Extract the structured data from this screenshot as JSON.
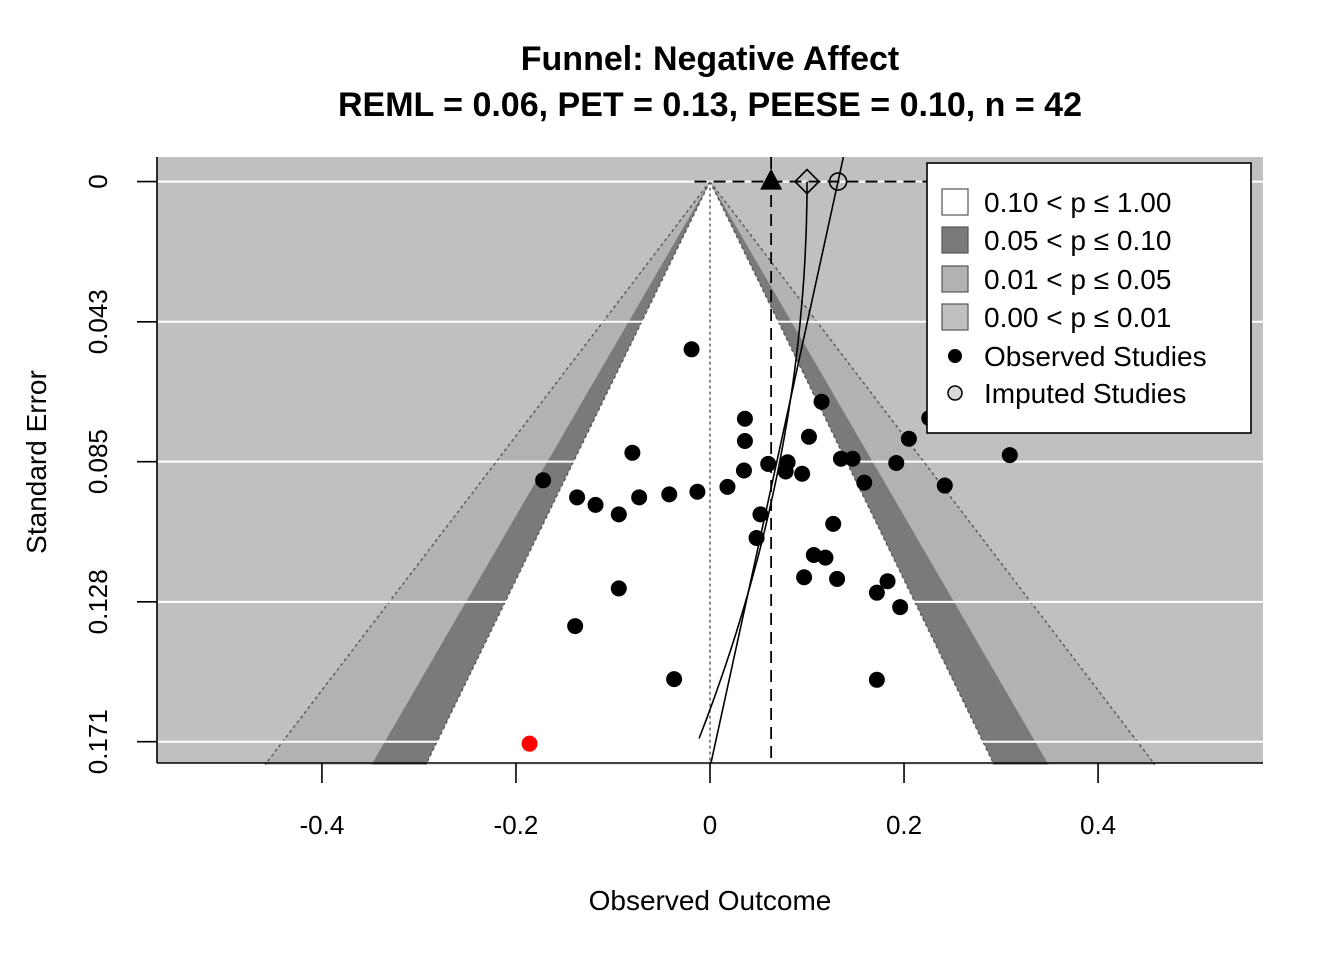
{
  "chart_data": {
    "type": "scatter",
    "subtype": "contour-enhanced funnel plot",
    "title": "Funnel: Negative Affect",
    "subtitle": "REML = 0.06,  PET = 0.13,  PEESE = 0.10,  n = 42",
    "xlabel": "Observed Outcome",
    "ylabel": "Standard Error",
    "xlim": [
      -0.57,
      0.57
    ],
    "ylim": [
      0.1775,
      -0.0075
    ],
    "x_ticks": [
      {
        "value": -0.4,
        "label": "-0.4"
      },
      {
        "value": -0.2,
        "label": "-0.2"
      },
      {
        "value": 0,
        "label": "0"
      },
      {
        "value": 0.2,
        "label": "0.2"
      },
      {
        "value": 0.4,
        "label": "0.4"
      }
    ],
    "y_ticks": [
      {
        "value": 0,
        "label": "0"
      },
      {
        "value": 0.0428,
        "label": "0.043"
      },
      {
        "value": 0.0855,
        "label": "0.085"
      },
      {
        "value": 0.1283,
        "label": "0.128"
      },
      {
        "value": 0.171,
        "label": "0.171"
      }
    ],
    "grid": "horizontal",
    "contours": {
      "center": 0,
      "z_values": [
        1.645,
        1.96,
        2.576
      ],
      "max_se": 0.178
    },
    "legend": {
      "position": "top-right",
      "entries": [
        {
          "label": "0.10 < p ≤ 1.00",
          "symbol": "box",
          "color": "#ffffff"
        },
        {
          "label": "0.05 < p ≤ 0.10",
          "symbol": "box",
          "color": "#7a7a7a"
        },
        {
          "label": "0.01 < p ≤ 0.05",
          "symbol": "box",
          "color": "#b2b2b2"
        },
        {
          "label": "0.00 < p ≤ 0.01",
          "symbol": "box",
          "color": "#c0c0c0"
        },
        {
          "label": "Observed Studies",
          "symbol": "filled-circle",
          "color": "#000000"
        },
        {
          "label": "Imputed Studies",
          "symbol": "open-circle",
          "color": "#d9d9d9"
        }
      ]
    },
    "estimates": {
      "reml": 0.063,
      "peese": 0.1,
      "pet": 0.132
    },
    "pet_line": {
      "points": [
        [
          0.132,
          0.0
        ],
        [
          0.001,
          0.1785
        ]
      ]
    },
    "peese_curve": {
      "intercept": 0.1,
      "coef": -3.85
    },
    "studies": [
      {
        "x": -0.019,
        "y": 0.0512
      },
      {
        "x": 0.115,
        "y": 0.0672
      },
      {
        "x": 0.226,
        "y": 0.0722
      },
      {
        "x": 0.036,
        "y": 0.0724
      },
      {
        "x": 0.102,
        "y": 0.0779
      },
      {
        "x": 0.205,
        "y": 0.0785
      },
      {
        "x": 0.036,
        "y": 0.0792
      },
      {
        "x": -0.08,
        "y": 0.0828
      },
      {
        "x": 0.309,
        "y": 0.0835
      },
      {
        "x": 0.135,
        "y": 0.0846
      },
      {
        "x": 0.147,
        "y": 0.0846
      },
      {
        "x": 0.08,
        "y": 0.0857
      },
      {
        "x": 0.192,
        "y": 0.0859
      },
      {
        "x": 0.06,
        "y": 0.0862
      },
      {
        "x": 0.035,
        "y": 0.0882
      },
      {
        "x": 0.078,
        "y": 0.0885
      },
      {
        "x": 0.095,
        "y": 0.0892
      },
      {
        "x": -0.172,
        "y": 0.0912
      },
      {
        "x": 0.159,
        "y": 0.0919
      },
      {
        "x": 0.242,
        "y": 0.0928
      },
      {
        "x": 0.018,
        "y": 0.0932
      },
      {
        "x": -0.013,
        "y": 0.0947
      },
      {
        "x": -0.042,
        "y": 0.0955
      },
      {
        "x": -0.137,
        "y": 0.0964
      },
      {
        "x": -0.073,
        "y": 0.0964
      },
      {
        "x": -0.118,
        "y": 0.0987
      },
      {
        "x": -0.094,
        "y": 0.1016
      },
      {
        "x": 0.052,
        "y": 0.1016
      },
      {
        "x": 0.127,
        "y": 0.1045
      },
      {
        "x": 0.048,
        "y": 0.1088
      },
      {
        "x": 0.107,
        "y": 0.114
      },
      {
        "x": 0.119,
        "y": 0.1148
      },
      {
        "x": 0.097,
        "y": 0.1208
      },
      {
        "x": 0.131,
        "y": 0.1213
      },
      {
        "x": 0.183,
        "y": 0.122
      },
      {
        "x": -0.094,
        "y": 0.1242
      },
      {
        "x": 0.172,
        "y": 0.1255
      },
      {
        "x": 0.196,
        "y": 0.1299
      },
      {
        "x": -0.139,
        "y": 0.1357
      },
      {
        "x": -0.037,
        "y": 0.1519
      },
      {
        "x": 0.172,
        "y": 0.1521
      },
      {
        "x": -0.186,
        "y": 0.1716,
        "color": "#ff0000"
      }
    ]
  }
}
